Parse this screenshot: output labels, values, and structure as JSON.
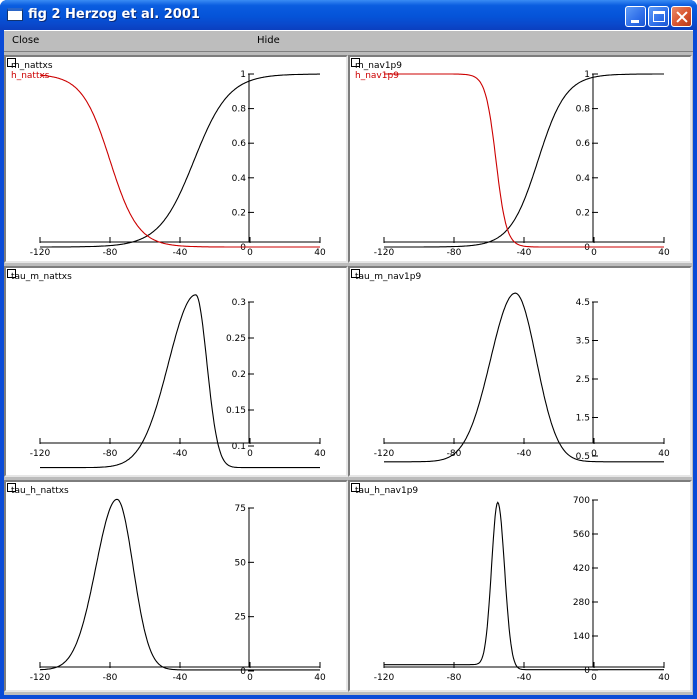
{
  "window": {
    "title": "fig 2 Herzog et al. 2001",
    "controls": [
      "minimize",
      "maximize",
      "close"
    ]
  },
  "menu": {
    "close_label": "Close",
    "hide_label": "Hide"
  },
  "colors": {
    "black_series": "#000000",
    "red_series": "#cc0000"
  },
  "chart_data": [
    {
      "type": "line",
      "series": [
        {
          "name": "m_nattxs",
          "color": "#000000",
          "formula": "sigmoid",
          "params": {
            "v_half": -32,
            "slope": 10,
            "sign": 1
          }
        },
        {
          "name": "h_nattxs",
          "color": "#cc0000",
          "formula": "sigmoid",
          "params": {
            "v_half": -80,
            "slope": 8,
            "sign": -1
          }
        }
      ],
      "xlim": [
        -120,
        40
      ],
      "ylim": [
        0,
        1
      ],
      "xticks": [
        -120,
        -80,
        -40,
        0,
        40
      ],
      "yticks": [
        0,
        0.2,
        0.4,
        0.6,
        0.8,
        1
      ],
      "xtick_labels": [
        "-120",
        "-80",
        "-40",
        "0",
        "40"
      ],
      "ytick_labels": [
        "0",
        "0.2",
        "0.4",
        "0.6",
        "0.8",
        "1"
      ]
    },
    {
      "type": "line",
      "series": [
        {
          "name": "m_nav1p9",
          "color": "#000000",
          "formula": "sigmoid",
          "params": {
            "v_half": -32,
            "slope": 8,
            "sign": 1
          }
        },
        {
          "name": "h_nav1p9",
          "color": "#cc0000",
          "formula": "sigmoid",
          "params": {
            "v_half": -56,
            "slope": 3,
            "sign": -1
          }
        }
      ],
      "xlim": [
        -120,
        40
      ],
      "ylim": [
        0,
        1
      ],
      "xticks": [
        -120,
        -80,
        -40,
        0,
        40
      ],
      "yticks": [
        0,
        0.2,
        0.4,
        0.6,
        0.8,
        1
      ],
      "xtick_labels": [
        "-120",
        "-80",
        "-40",
        "0",
        "40"
      ],
      "ytick_labels": [
        "0",
        "0.2",
        "0.4",
        "0.6",
        "0.8",
        "1"
      ]
    },
    {
      "type": "line",
      "series": [
        {
          "name": "tau_m_nattxs",
          "color": "#000000",
          "formula": "bell",
          "params": {
            "base": 0.07,
            "peak": 0.31,
            "v_peak": -31,
            "left_k": 22,
            "right_k": 9
          }
        }
      ],
      "xlim": [
        -120,
        40
      ],
      "ylim": [
        0.1,
        0.3
      ],
      "xticks": [
        -120,
        -80,
        -40,
        0,
        40
      ],
      "yticks": [
        0.1,
        0.15,
        0.2,
        0.25,
        0.3
      ],
      "xtick_labels": [
        "-120",
        "-80",
        "-40",
        "0",
        "40"
      ],
      "ytick_labels": [
        "0.1",
        "0.15",
        "0.2",
        "0.25",
        "0.3"
      ]
    },
    {
      "type": "line",
      "series": [
        {
          "name": "tau_m_nav1p9",
          "color": "#000000",
          "formula": "bell",
          "params": {
            "base": 0.35,
            "peak": 4.73,
            "v_peak": -45,
            "left_k": 20,
            "right_k": 17
          }
        }
      ],
      "xlim": [
        -120,
        40
      ],
      "ylim": [
        0.5,
        4.5
      ],
      "xticks": [
        -120,
        -80,
        -40,
        0,
        40
      ],
      "yticks": [
        0.5,
        1.5,
        2.5,
        3.5,
        4.5
      ],
      "xtick_labels": [
        "-120",
        "-80",
        "-40",
        "0",
        "40"
      ],
      "ytick_labels": [
        "0.5",
        "1.5",
        "2.5",
        "3.5",
        "4.5"
      ]
    },
    {
      "type": "line",
      "series": [
        {
          "name": "tau_h_nattxs",
          "color": "#000000",
          "formula": "bell",
          "params": {
            "base": 0.5,
            "peak": 79,
            "v_peak": -76,
            "left_k": 17,
            "right_k": 13
          }
        }
      ],
      "xlim": [
        -120,
        40
      ],
      "ylim": [
        0,
        75
      ],
      "xticks": [
        -120,
        -80,
        -40,
        0,
        40
      ],
      "yticks": [
        0,
        25,
        50,
        75
      ],
      "xtick_labels": [
        "-120",
        "-80",
        "-40",
        "0",
        "40"
      ],
      "ytick_labels": [
        "0",
        "25",
        "50",
        "75"
      ]
    },
    {
      "type": "line",
      "series": [
        {
          "name": "tau_h_nav1p9",
          "color": "#000000",
          "formula": "bell",
          "params": {
            "base": 1.2,
            "peak": 690,
            "v_peak": -55,
            "left_k": 5,
            "right_k": 5.5,
            "left_floor": 22,
            "right_floor": 0
          }
        }
      ],
      "xlim": [
        -120,
        40
      ],
      "ylim": [
        0,
        700
      ],
      "xticks": [
        -120,
        -80,
        -40,
        0,
        40
      ],
      "yticks": [
        0,
        140,
        280,
        420,
        560,
        700
      ],
      "xtick_labels": [
        "-120",
        "-80",
        "-40",
        "0",
        "40"
      ],
      "ytick_labels": [
        "0",
        "140",
        "280",
        "420",
        "560",
        "700"
      ]
    }
  ]
}
